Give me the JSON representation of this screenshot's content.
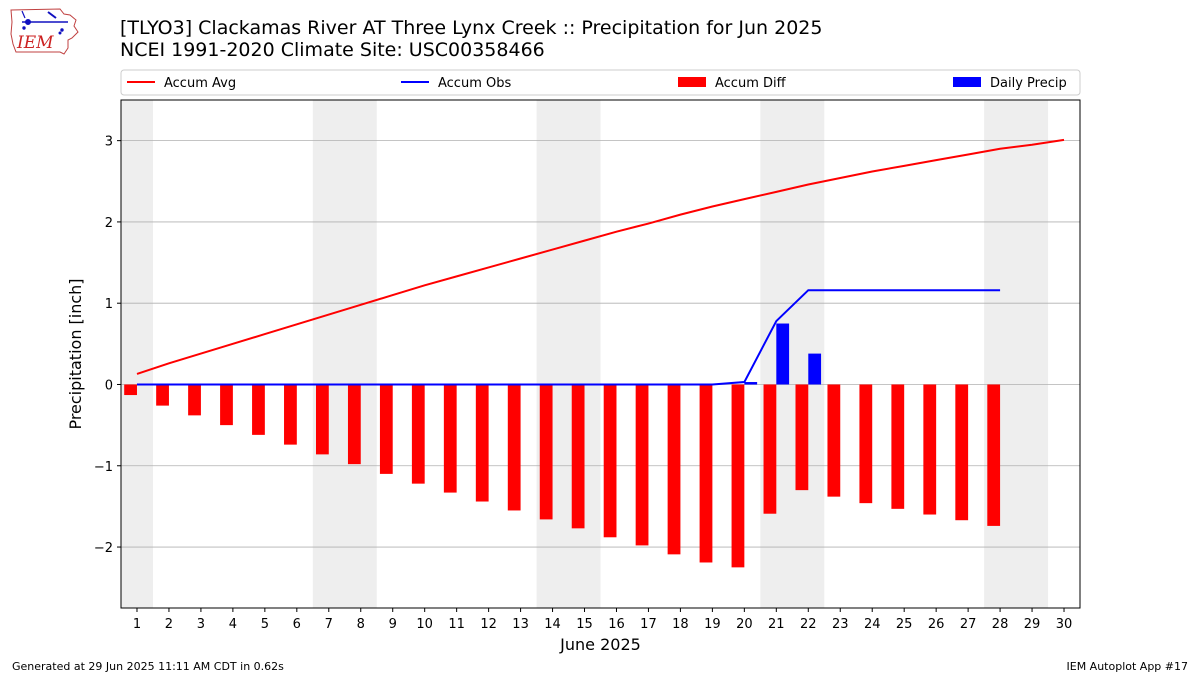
{
  "logo": {
    "text": "IEM"
  },
  "title_line1": "[TLYO3] Clackamas River  AT Three Lynx Creek :: Precipitation for Jun 2025",
  "title_line2": "NCEI 1991-2020 Climate Site: USC00358466",
  "footer": {
    "left": "Generated at 29 Jun 2025 11:11 AM CDT in 0.62s",
    "right": "IEM Autoplot App #17"
  },
  "chart_data": {
    "type": "bar",
    "xlabel": "June 2025",
    "ylabel": "Precipitation [inch]",
    "xlim": [
      0.5,
      30.5
    ],
    "ylim": [
      -2.75,
      3.5
    ],
    "yticks": [
      -2,
      -1,
      0,
      1,
      2,
      3
    ],
    "ytick_labels": [
      "−2",
      "−1",
      "0",
      "1",
      "2",
      "3"
    ],
    "days": [
      1,
      2,
      3,
      4,
      5,
      6,
      7,
      8,
      9,
      10,
      11,
      12,
      13,
      14,
      15,
      16,
      17,
      18,
      19,
      20,
      21,
      22,
      23,
      24,
      25,
      26,
      27,
      28,
      29,
      30
    ],
    "weekend_bands": [
      [
        0.5,
        1.5
      ],
      [
        6.5,
        8.5
      ],
      [
        13.5,
        15.5
      ],
      [
        20.5,
        22.5
      ],
      [
        27.5,
        29.5
      ]
    ],
    "grid": true,
    "legend_placement": "top",
    "colors": {
      "accum_avg": "#ff0000",
      "accum_obs": "#0000ff",
      "accum_diff": "#ff0000",
      "daily_precip": "#0000ff",
      "band": "#eeeeee",
      "grid": "#b0b0b0"
    },
    "series": [
      {
        "name": "Accum Avg",
        "kind": "line",
        "x": [
          1,
          2,
          3,
          4,
          5,
          6,
          7,
          8,
          9,
          10,
          11,
          12,
          13,
          14,
          15,
          16,
          17,
          18,
          19,
          20,
          21,
          22,
          23,
          24,
          25,
          26,
          27,
          28,
          29,
          30
        ],
        "values": [
          0.13,
          0.26,
          0.38,
          0.5,
          0.62,
          0.74,
          0.86,
          0.98,
          1.1,
          1.22,
          1.33,
          1.44,
          1.55,
          1.66,
          1.77,
          1.88,
          1.98,
          2.09,
          2.19,
          2.28,
          2.37,
          2.46,
          2.54,
          2.62,
          2.69,
          2.76,
          2.83,
          2.9,
          2.95,
          3.01
        ]
      },
      {
        "name": "Accum Obs",
        "kind": "line",
        "x": [
          1,
          2,
          3,
          4,
          5,
          6,
          7,
          8,
          9,
          10,
          11,
          12,
          13,
          14,
          15,
          16,
          17,
          18,
          19,
          20,
          21,
          22,
          23,
          24,
          25,
          26,
          27,
          28
        ],
        "values": [
          0,
          0,
          0,
          0,
          0,
          0,
          0,
          0,
          0,
          0,
          0,
          0,
          0,
          0,
          0,
          0,
          0,
          0,
          0,
          0.03,
          0.78,
          1.16,
          1.16,
          1.16,
          1.16,
          1.16,
          1.16,
          1.16
        ]
      },
      {
        "name": "Accum Diff",
        "kind": "bar",
        "x": [
          1,
          2,
          3,
          4,
          5,
          6,
          7,
          8,
          9,
          10,
          11,
          12,
          13,
          14,
          15,
          16,
          17,
          18,
          19,
          20,
          21,
          22,
          23,
          24,
          25,
          26,
          27,
          28
        ],
        "values": [
          -0.13,
          -0.26,
          -0.38,
          -0.5,
          -0.62,
          -0.74,
          -0.86,
          -0.98,
          -1.1,
          -1.22,
          -1.33,
          -1.44,
          -1.55,
          -1.66,
          -1.77,
          -1.88,
          -1.98,
          -2.09,
          -2.19,
          -2.25,
          -1.59,
          -1.3,
          -1.38,
          -1.46,
          -1.53,
          -1.6,
          -1.67,
          -1.74
        ]
      },
      {
        "name": "Daily Precip",
        "kind": "bar",
        "x": [
          20,
          21,
          22
        ],
        "values": [
          0.03,
          0.75,
          0.38
        ]
      }
    ]
  }
}
